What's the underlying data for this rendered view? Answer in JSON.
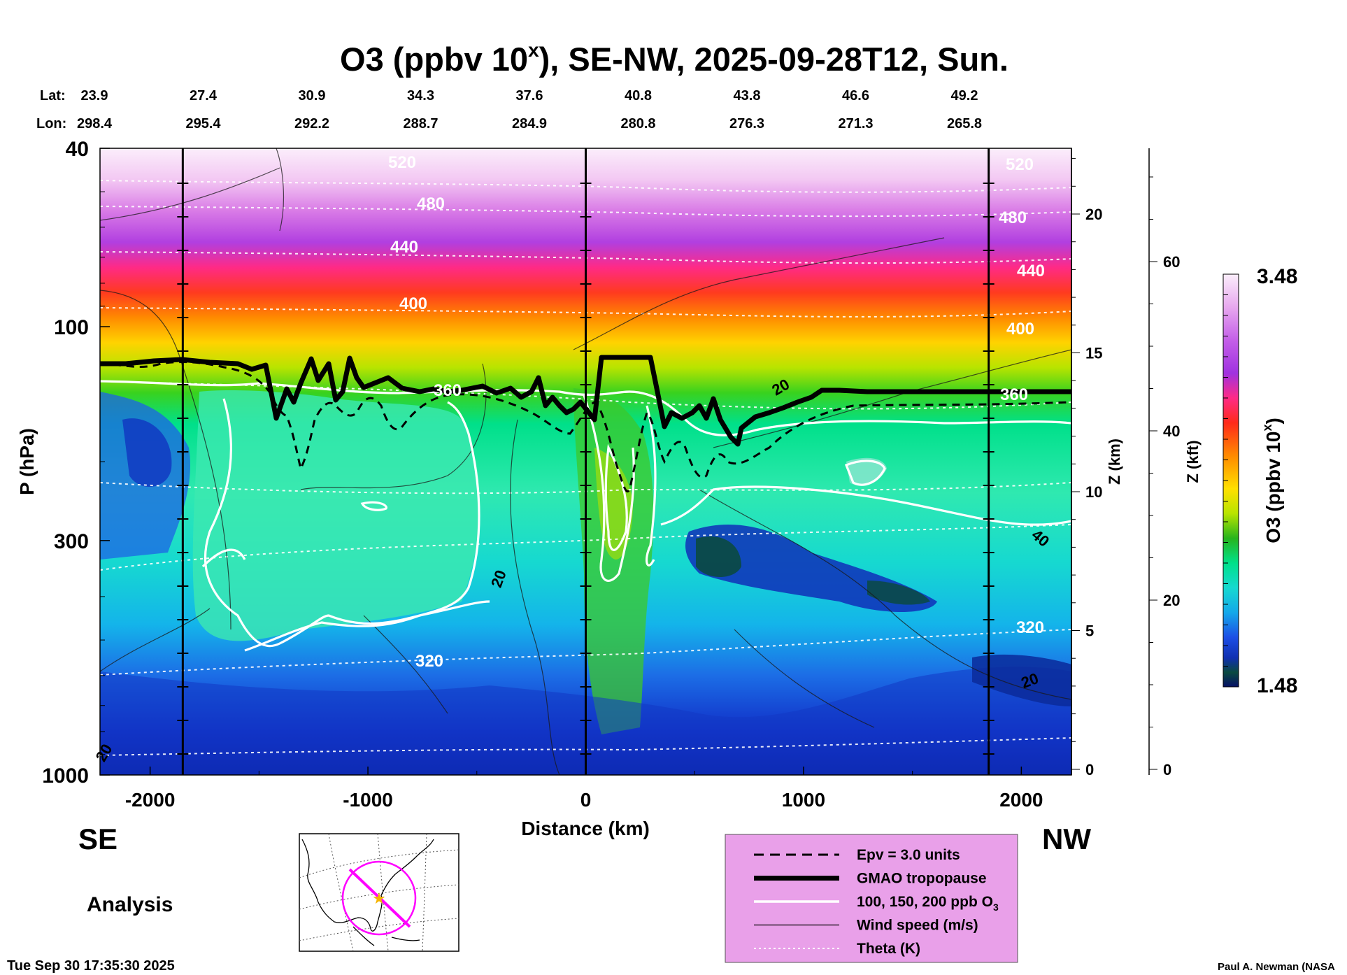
{
  "chart_data": {
    "type": "heatmap",
    "title": "O3 (ppbv 10",
    "title_sup": "x",
    "title_rest": "), SE-NW, 2025-09-28T12, Sun.",
    "lat_label": "Lat:",
    "lon_label": "Lon:",
    "lat_values": [
      "23.9",
      "27.4",
      "30.9",
      "34.3",
      "37.6",
      "40.8",
      "43.8",
      "46.6",
      "49.2"
    ],
    "lon_values": [
      "298.4",
      "295.4",
      "292.2",
      "288.7",
      "284.9",
      "280.8",
      "276.3",
      "271.3",
      "265.8"
    ],
    "xlabel": "Distance (km)",
    "x_ticks": [
      -2000,
      -1000,
      0,
      1000,
      2000
    ],
    "x_tick_labels": [
      "-2000",
      "-1000",
      "0",
      "1000",
      "2000"
    ],
    "xlim": [
      -2230,
      2230
    ],
    "ylabel": "P (hPa)",
    "y_scale": "log",
    "ylim": [
      1000,
      40
    ],
    "y_ticks": [
      40,
      100,
      300,
      1000
    ],
    "y_tick_labels": [
      "40",
      "100",
      "300",
      "1000"
    ],
    "z_km_label": "Z (km)",
    "z_km_ticks": [
      "0",
      "5",
      "10",
      "15",
      "20"
    ],
    "z_kft_label": "Z (kft)",
    "z_kft_ticks": [
      "0",
      "20",
      "40",
      "60"
    ],
    "colorbar": {
      "label": "O3 (ppbv 10",
      "label_sup": "x",
      "label_rest": ")",
      "max_label": "3.48",
      "min_label": "1.48",
      "range": [
        1.48,
        3.48
      ]
    },
    "theta_labels": [
      "520",
      "480",
      "440",
      "400",
      "360",
      "320"
    ],
    "wind_labels": [
      "20",
      "40"
    ],
    "left_dir": "SE",
    "right_dir": "NW",
    "analysis_label": "Analysis",
    "legend": [
      {
        "style": "dashed",
        "label": "Epv = 3.0 units"
      },
      {
        "style": "thick",
        "label": "GMAO tropopause"
      },
      {
        "style": "white",
        "label": "100, 150, 200 ppb O",
        "sub": "3"
      },
      {
        "style": "thin",
        "label": "Wind speed (m/s)"
      },
      {
        "style": "dotted",
        "label": "Theta (K)"
      }
    ],
    "timestamp": "Tue Sep 30 17:35:30 2025",
    "credit": "Paul A. Newman (NASA",
    "colors": {
      "legend_bg": "#e9a0e9",
      "map_line": "#ff00ff",
      "map_star": "#f5b400"
    }
  }
}
